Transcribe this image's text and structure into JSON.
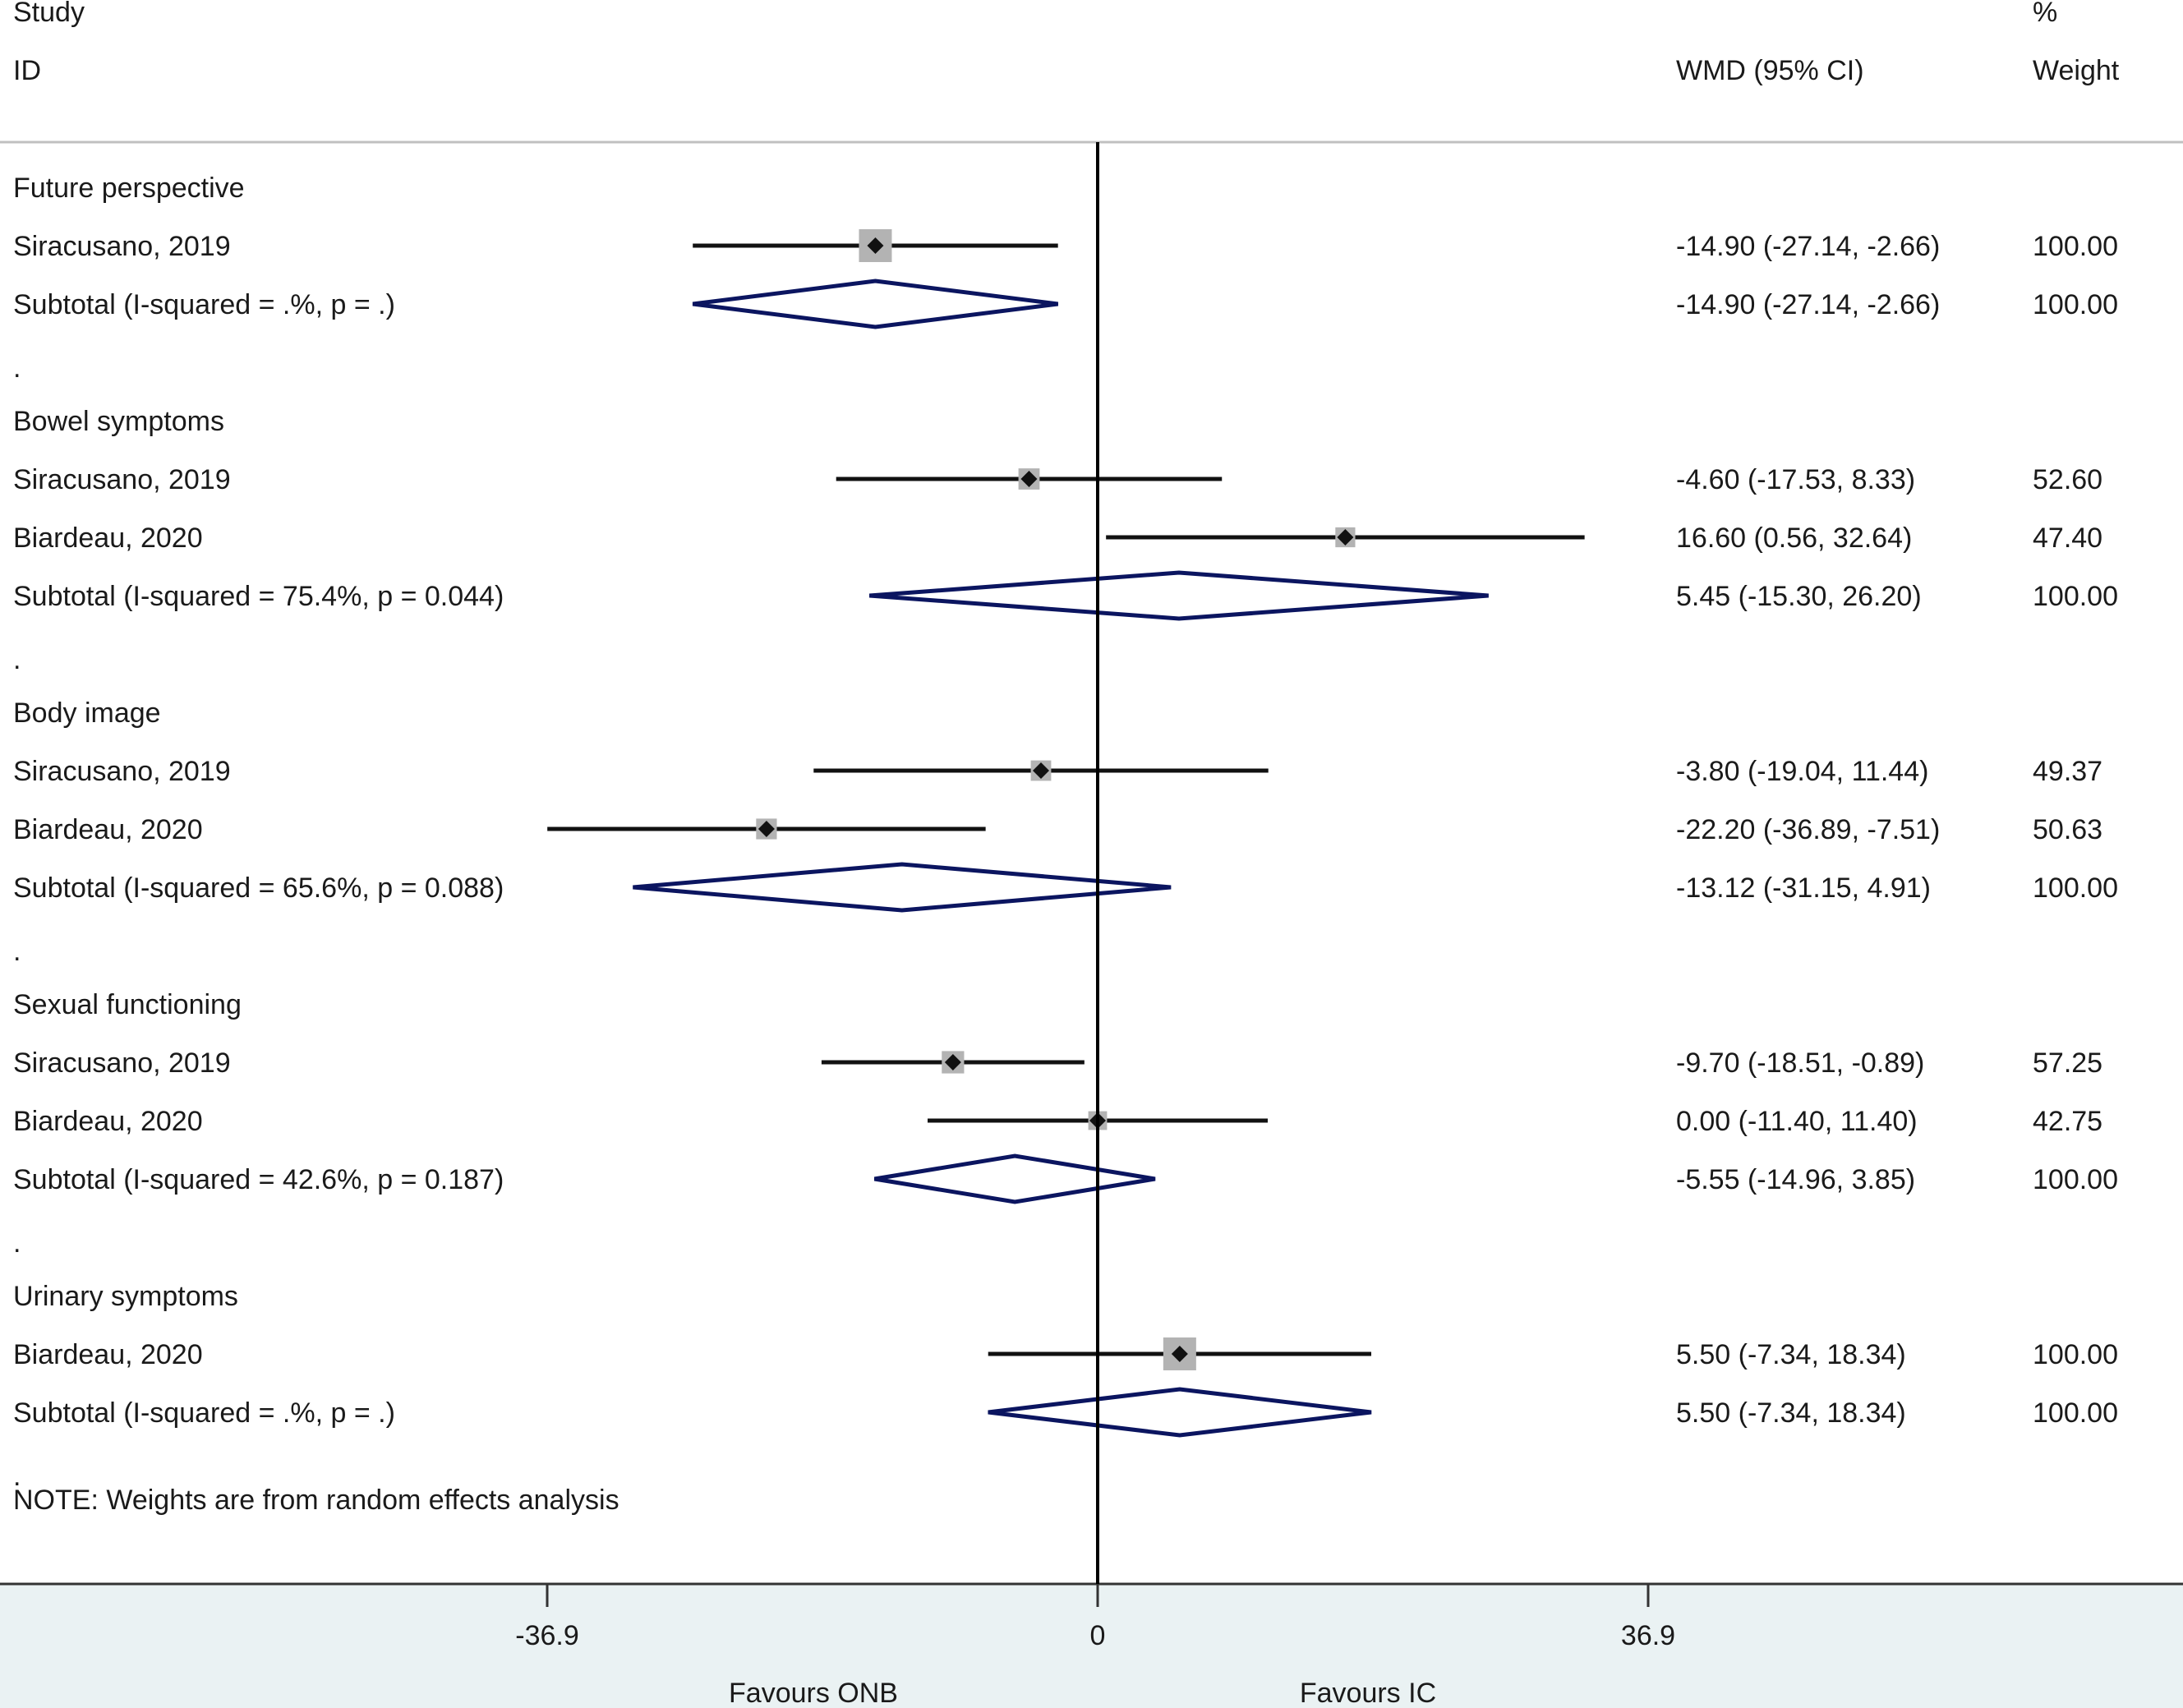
{
  "chart_data": {
    "type": "forest",
    "columns": {
      "study_header_line1": "Study",
      "study_header_line2": "ID",
      "estimate_header": "WMD (95% CI)",
      "weight_header_line1": "%",
      "weight_header_line2": "Weight"
    },
    "x_axis": {
      "min": -36.9,
      "max": 36.9,
      "null_line": 0,
      "ticks": [
        {
          "value": -36.9,
          "label": "-36.9"
        },
        {
          "value": 0,
          "label": "0"
        },
        {
          "value": 36.9,
          "label": "36.9"
        }
      ],
      "favours_left": "Favours ONB",
      "favours_right": "Favours IC"
    },
    "rows": [
      {
        "kind": "header",
        "label": "Future perspective"
      },
      {
        "kind": "study",
        "label": "Siracusano, 2019",
        "est": -14.9,
        "lo": -27.14,
        "hi": -2.66,
        "ci_text": "-14.90 (-27.14, -2.66)",
        "weight_text": "100.00",
        "weight": 100.0
      },
      {
        "kind": "subtotal",
        "label": "Subtotal  (I-squared = .%, p = .)",
        "est": -14.9,
        "lo": -27.14,
        "hi": -2.66,
        "ci_text": "-14.90 (-27.14, -2.66)",
        "weight_text": "100.00"
      },
      {
        "kind": "dot",
        "label": "."
      },
      {
        "kind": "header",
        "label": "Bowel symptoms"
      },
      {
        "kind": "study",
        "label": "Siracusano, 2019",
        "est": -4.6,
        "lo": -17.53,
        "hi": 8.33,
        "ci_text": "-4.60 (-17.53, 8.33)",
        "weight_text": "52.60",
        "weight": 52.6
      },
      {
        "kind": "study",
        "label": "Biardeau, 2020",
        "est": 16.6,
        "lo": 0.56,
        "hi": 32.64,
        "ci_text": "16.60 (0.56, 32.64)",
        "weight_text": "47.40",
        "weight": 47.4
      },
      {
        "kind": "subtotal",
        "label": "Subtotal  (I-squared = 75.4%, p = 0.044)",
        "est": 5.45,
        "lo": -15.3,
        "hi": 26.2,
        "ci_text": "5.45 (-15.30, 26.20)",
        "weight_text": "100.00"
      },
      {
        "kind": "dot",
        "label": "."
      },
      {
        "kind": "header",
        "label": "Body image"
      },
      {
        "kind": "study",
        "label": "Siracusano, 2019",
        "est": -3.8,
        "lo": -19.04,
        "hi": 11.44,
        "ci_text": "-3.80 (-19.04, 11.44)",
        "weight_text": "49.37",
        "weight": 49.37
      },
      {
        "kind": "study",
        "label": "Biardeau, 2020",
        "est": -22.2,
        "lo": -36.89,
        "hi": -7.51,
        "ci_text": "-22.20 (-36.89, -7.51)",
        "weight_text": "50.63",
        "weight": 50.63
      },
      {
        "kind": "subtotal",
        "label": "Subtotal  (I-squared = 65.6%, p = 0.088)",
        "est": -13.12,
        "lo": -31.15,
        "hi": 4.91,
        "ci_text": "-13.12 (-31.15, 4.91)",
        "weight_text": "100.00"
      },
      {
        "kind": "dot",
        "label": "."
      },
      {
        "kind": "header",
        "label": "Sexual functioning"
      },
      {
        "kind": "study",
        "label": "Siracusano, 2019",
        "est": -9.7,
        "lo": -18.51,
        "hi": -0.89,
        "ci_text": "-9.70 (-18.51, -0.89)",
        "weight_text": "57.25",
        "weight": 57.25
      },
      {
        "kind": "study",
        "label": "Biardeau, 2020",
        "est": 0.0,
        "lo": -11.4,
        "hi": 11.4,
        "ci_text": "0.00 (-11.40, 11.40)",
        "weight_text": "42.75",
        "weight": 42.75
      },
      {
        "kind": "subtotal",
        "label": "Subtotal  (I-squared = 42.6%, p = 0.187)",
        "est": -5.55,
        "lo": -14.96,
        "hi": 3.85,
        "ci_text": "-5.55 (-14.96, 3.85)",
        "weight_text": "100.00"
      },
      {
        "kind": "dot",
        "label": "."
      },
      {
        "kind": "header",
        "label": "Urinary symptoms"
      },
      {
        "kind": "study",
        "label": "Biardeau, 2020",
        "est": 5.5,
        "lo": -7.34,
        "hi": 18.34,
        "ci_text": "5.50 (-7.34, 18.34)",
        "weight_text": "100.00",
        "weight": 100.0
      },
      {
        "kind": "subtotal",
        "label": "Subtotal  (I-squared = .%, p = .)",
        "est": 5.5,
        "lo": -7.34,
        "hi": 18.34,
        "ci_text": "5.50 (-7.34, 18.34)",
        "weight_text": "100.00"
      },
      {
        "kind": "dot",
        "label": "."
      }
    ],
    "note": "NOTE: Weights are from random effects analysis"
  },
  "colors": {
    "text": "#1a1a1a",
    "ci_line": "#111111",
    "marker": "#111111",
    "weight_box": "#b3b3b3",
    "diamond": "#0b1560",
    "axis_panel": "#eaf2f3",
    "separator": "#c0c0c0"
  }
}
